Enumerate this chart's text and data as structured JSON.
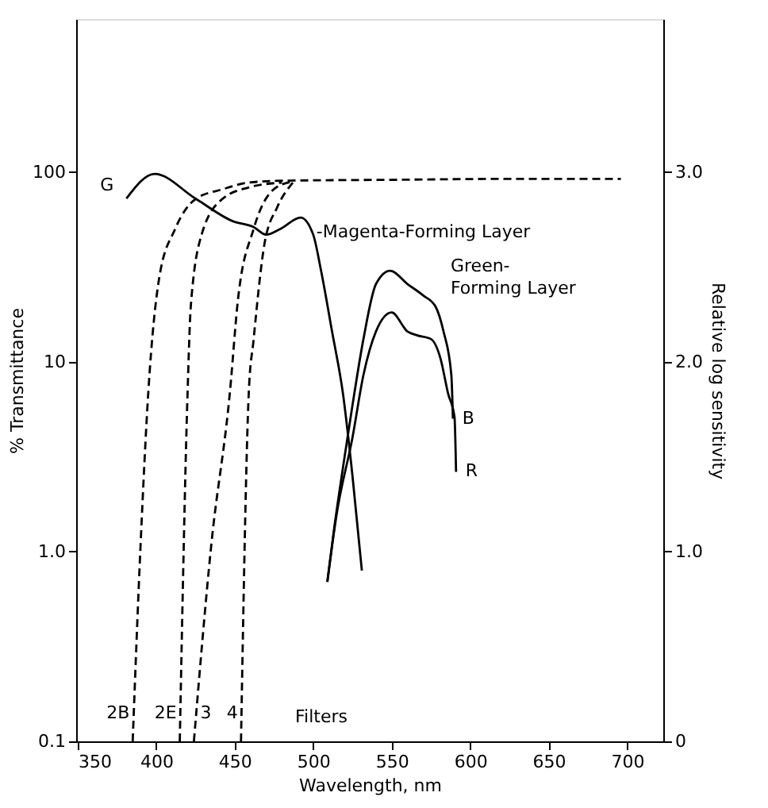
{
  "chart_data": {
    "type": "line",
    "xlabel": "Wavelength, nm",
    "ylabel": "% Transmittance",
    "y2label": "Relative log sensitivity",
    "xlim": [
      349,
      723
    ],
    "xticks": [
      350,
      400,
      450,
      500,
      550,
      600,
      650,
      700
    ],
    "ylim": [
      0.1,
      640
    ],
    "yticks": [
      {
        "value": 0.1,
        "label": "0.1"
      },
      {
        "value": 1,
        "label": "1.0"
      },
      10,
      100
    ],
    "y2lim": [
      0,
      3.806
    ],
    "y2ticks": [
      0,
      {
        "value": 1,
        "label": "1.0"
      },
      {
        "value": 2,
        "label": "2.0"
      },
      {
        "value": 3,
        "label": "3.0"
      }
    ],
    "log": "y",
    "grid": false,
    "marker": "none",
    "series": [
      {
        "name": "2B",
        "color": "#000000",
        "line_style": "dashed",
        "x": [
          385,
          390,
          395,
          402,
          412,
          425,
          442,
          459,
          480,
          550,
          620,
          696
        ],
        "values": [
          0.1,
          1.07,
          7.0,
          28,
          50,
          72,
          81,
          88,
          90,
          91,
          92,
          92
        ]
      },
      {
        "name": "2E",
        "color": "#000000",
        "line_style": "dashed",
        "x": [
          415,
          420,
          422,
          429,
          442,
          459,
          480
        ],
        "values": [
          0.1,
          7.0,
          19.5,
          47,
          72,
          83,
          88
        ]
      },
      {
        "name": "3",
        "color": "#000000",
        "line_style": "dashed",
        "x": [
          424,
          435,
          447,
          452,
          462,
          474,
          486
        ],
        "values": [
          0.1,
          1.07,
          7.0,
          21,
          50,
          80,
          89
        ]
      },
      {
        "name": "4",
        "color": "#000000",
        "line_style": "dashed",
        "x": [
          454,
          459,
          462,
          469,
          477,
          487
        ],
        "values": [
          0.1,
          7.0,
          13,
          42,
          65,
          88
        ]
      },
      {
        "name": "G",
        "color": "#000000",
        "line_style": "solid",
        "axis": "y2",
        "x": [
          381,
          399,
          425,
          449,
          462,
          470,
          479,
          492,
          500,
          505,
          512,
          519,
          525,
          531
        ],
        "values": [
          2.86,
          2.99,
          2.86,
          2.74,
          2.71,
          2.67,
          2.7,
          2.76,
          2.67,
          2.48,
          2.16,
          1.83,
          1.4,
          0.9
        ]
      },
      {
        "name": "B",
        "color": "#000000",
        "line_style": "solid",
        "axis": "y2",
        "x": [
          509,
          513,
          520,
          525,
          532,
          540,
          549,
          560,
          570,
          578,
          583,
          588,
          589
        ],
        "values": [
          0.84,
          1.1,
          1.5,
          1.77,
          2.12,
          2.41,
          2.48,
          2.41,
          2.35,
          2.29,
          2.16,
          1.93,
          1.7
        ]
      },
      {
        "name": "R",
        "color": "#000000",
        "line_style": "solid",
        "axis": "y2",
        "x": [
          509,
          515,
          525,
          532,
          540,
          550,
          560,
          566,
          575,
          581,
          586,
          590,
          591
        ],
        "values": [
          0.84,
          1.2,
          1.6,
          1.93,
          2.16,
          2.26,
          2.16,
          2.14,
          2.12,
          2.02,
          1.83,
          1.71,
          1.42
        ]
      }
    ],
    "annotations": [
      {
        "text": "-Magenta-Forming Layer",
        "x": 502,
        "y": 48
      },
      "Green-Forming Layer",
      "Filters"
    ]
  }
}
